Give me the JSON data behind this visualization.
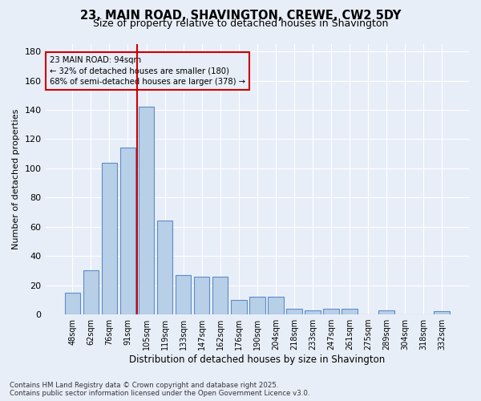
{
  "title_line1": "23, MAIN ROAD, SHAVINGTON, CREWE, CW2 5DY",
  "title_line2": "Size of property relative to detached houses in Shavington",
  "xlabel": "Distribution of detached houses by size in Shavington",
  "ylabel": "Number of detached properties",
  "categories": [
    "48sqm",
    "62sqm",
    "76sqm",
    "91sqm",
    "105sqm",
    "119sqm",
    "133sqm",
    "147sqm",
    "162sqm",
    "176sqm",
    "190sqm",
    "204sqm",
    "218sqm",
    "233sqm",
    "247sqm",
    "261sqm",
    "275sqm",
    "289sqm",
    "304sqm",
    "318sqm",
    "332sqm"
  ],
  "values": [
    15,
    30,
    104,
    114,
    142,
    64,
    27,
    26,
    26,
    10,
    12,
    12,
    4,
    3,
    4,
    4,
    0,
    3,
    0,
    0,
    2
  ],
  "bar_color": "#b8cfe8",
  "bar_edge_color": "#5b8cc8",
  "vline_x_idx": 3.5,
  "vline_color": "#cc0000",
  "annotation_text": "23 MAIN ROAD: 94sqm\n← 32% of detached houses are smaller (180)\n68% of semi-detached houses are larger (378) →",
  "annotation_box_edge_color": "#cc0000",
  "ylim": [
    0,
    185
  ],
  "yticks": [
    0,
    20,
    40,
    60,
    80,
    100,
    120,
    140,
    160,
    180
  ],
  "background_color": "#e8eef8",
  "grid_color": "#ffffff",
  "footer_line1": "Contains HM Land Registry data © Crown copyright and database right 2025.",
  "footer_line2": "Contains public sector information licensed under the Open Government Licence v3.0.",
  "figsize": [
    6.0,
    5.0
  ],
  "dpi": 100
}
